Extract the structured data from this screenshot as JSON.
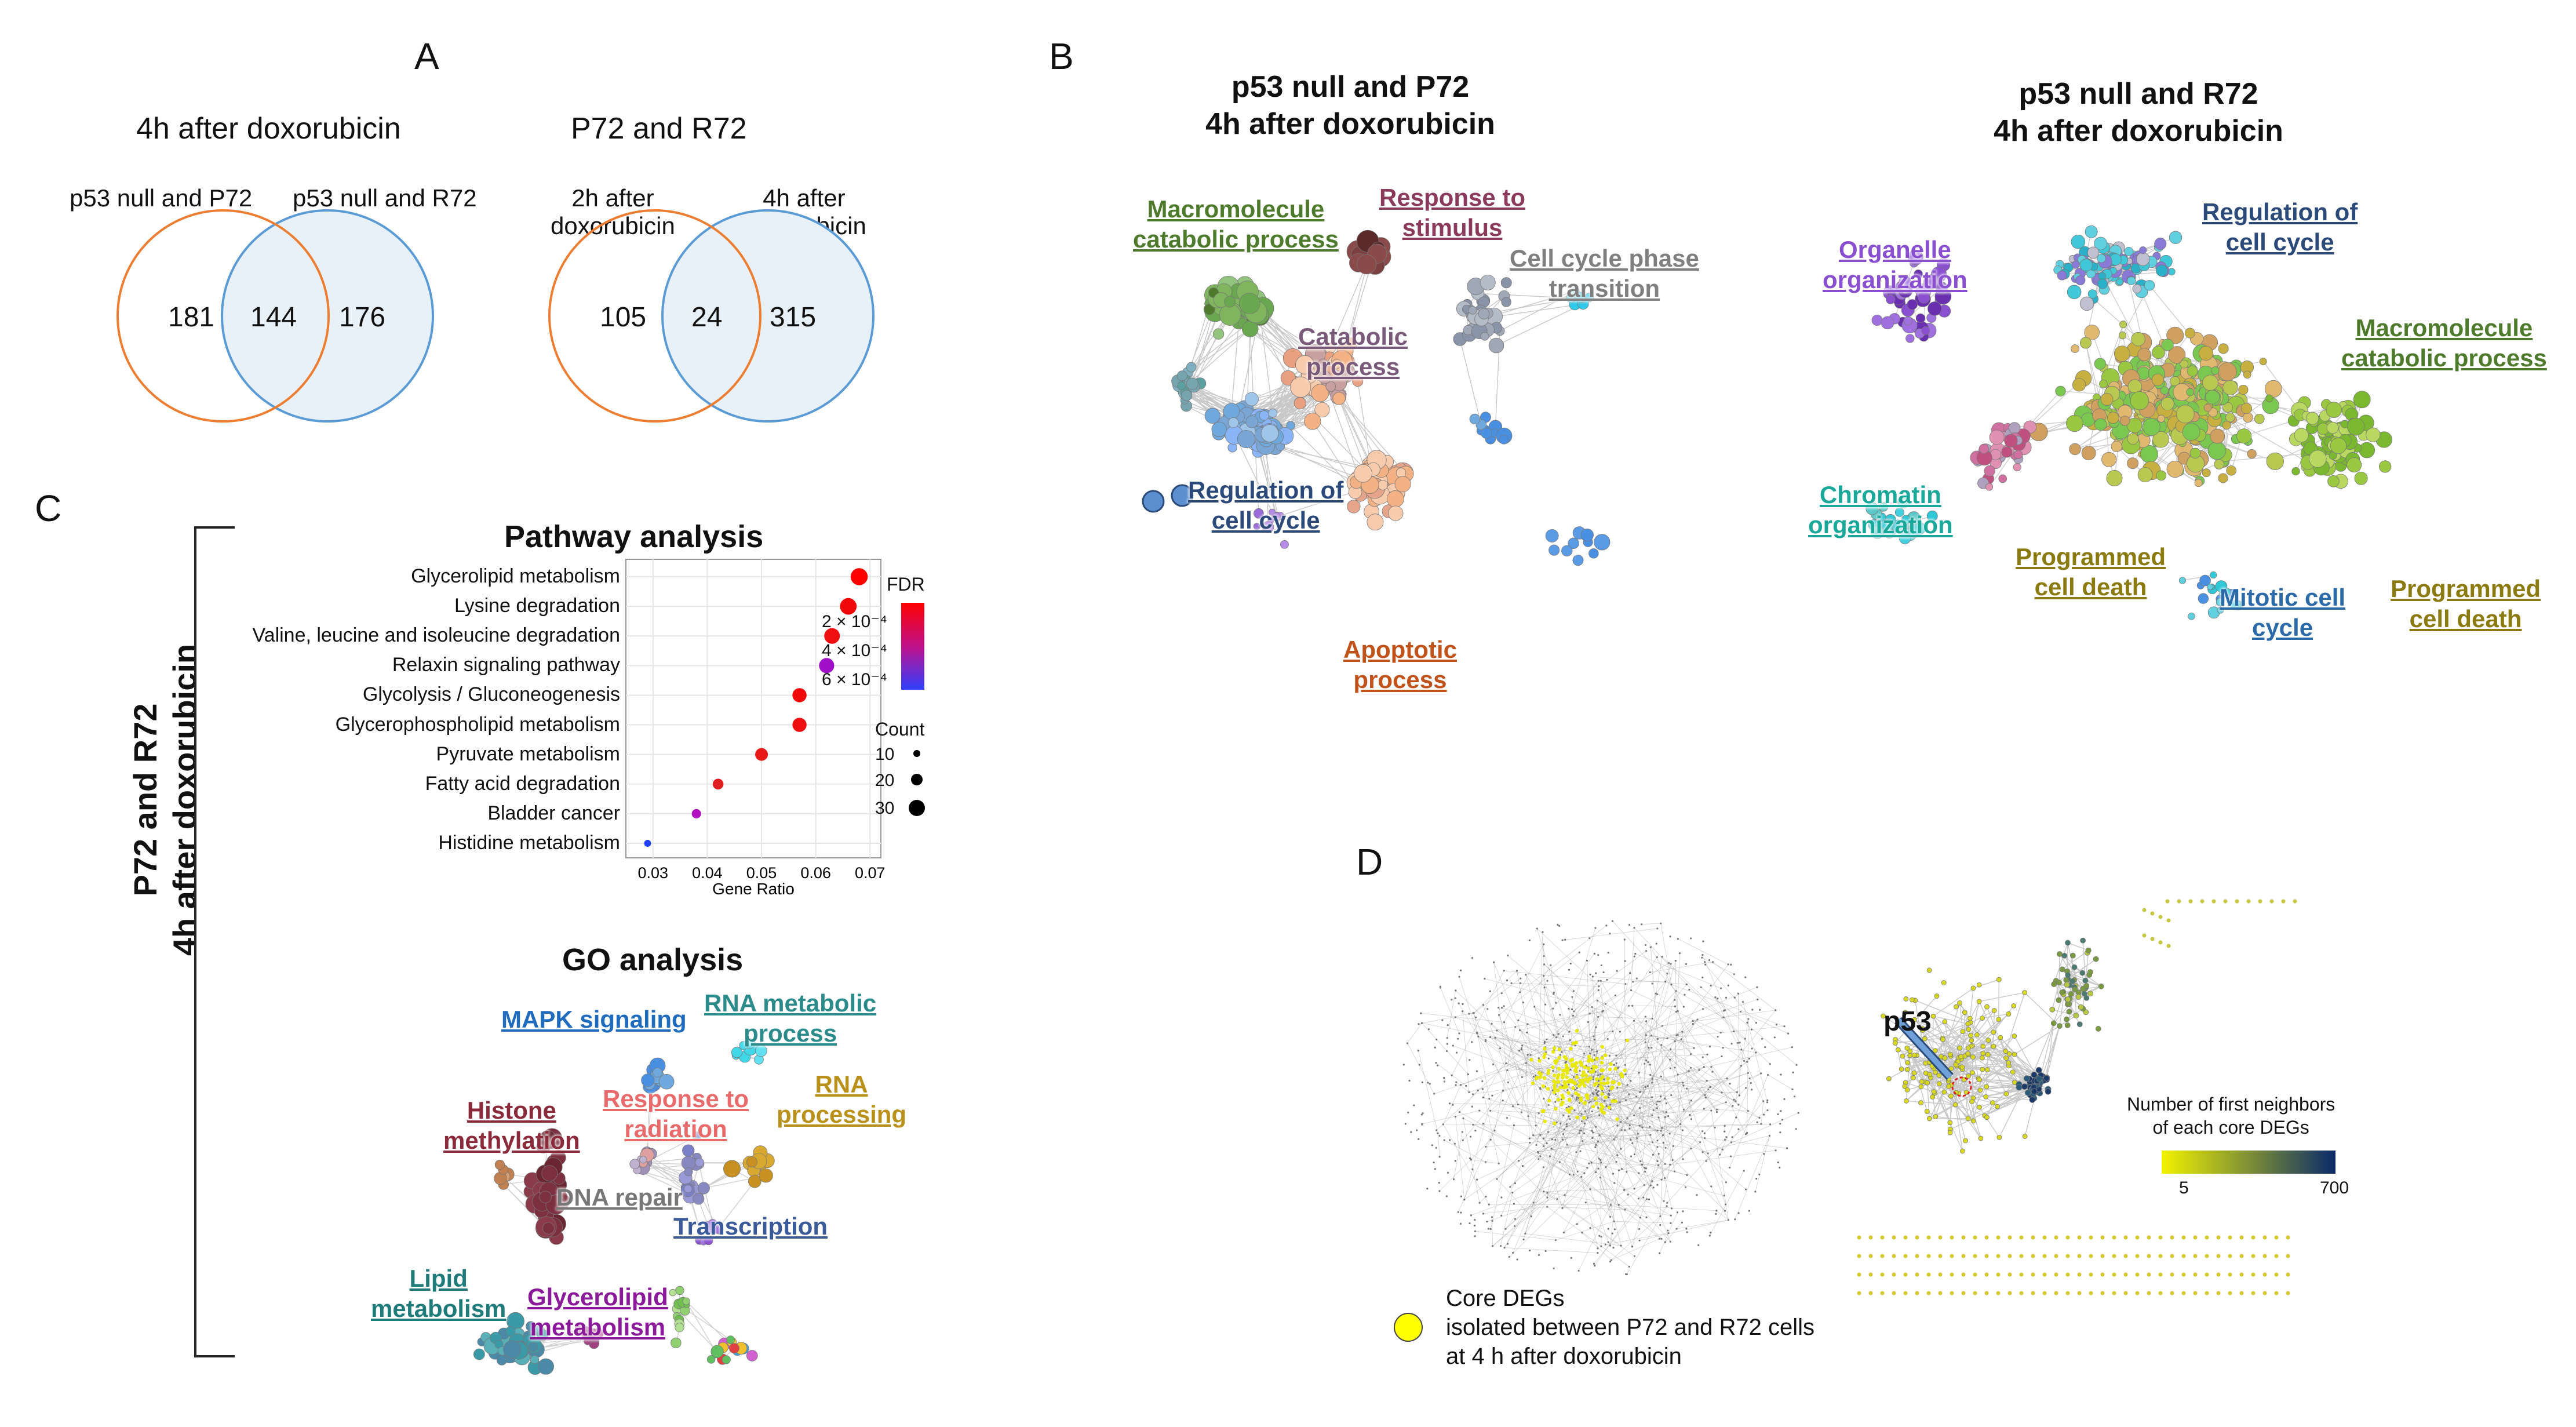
{
  "panels": {
    "A": "A",
    "B": "B",
    "C": "C",
    "D": "D"
  },
  "panelA": {
    "venn1": {
      "title": "4h after doxorubicin",
      "left_label": "p53 null and P72",
      "right_label": "p53 null and R72",
      "left_only": "181",
      "overlap": "144",
      "right_only": "176"
    },
    "venn2": {
      "title": "P72 and R72",
      "left_label_1": "2h after",
      "left_label_2": "doxorubicin",
      "right_label_1": "4h after",
      "right_label_2": "doxorubicin",
      "left_only": "105",
      "overlap": "24",
      "right_only": "315"
    },
    "colors": {
      "left": "#ed7d31",
      "right": "#5b9bd5",
      "right_fill": "#e8f0f8"
    }
  },
  "panelB": {
    "net1": {
      "title_1": "p53 null and P72",
      "title_2": "4h after doxorubicin",
      "labels": {
        "macromolecule_1": "Macromolecule",
        "macromolecule_2": "catabolic process",
        "response_1": "Response to",
        "response_2": "stimulus",
        "cellcycle_1": "Cell cycle phase",
        "cellcycle_2": "transition",
        "catabolic_1": "Catabolic",
        "catabolic_2": "process",
        "regulation_1": "Regulation of",
        "regulation_2": "cell cycle",
        "apoptotic_1": "Apoptotic",
        "apoptotic_2": "process"
      }
    },
    "net2": {
      "title_1": "p53 null and R72",
      "title_2": "4h after doxorubicin",
      "labels": {
        "regulation_1": "Regulation of",
        "regulation_2": "cell cycle",
        "organelle_1": "Organelle",
        "organelle_2": "organization",
        "macromolecule_1": "Macromolecule",
        "macromolecule_2": "catabolic process",
        "chromatin_1": "Chromatin",
        "chromatin_2": "organization",
        "programmed_a1": "Programmed",
        "programmed_a2": "cell death",
        "mitotic_1": "Mitotic cell",
        "mitotic_2": "cycle",
        "programmed_b1": "Programmed",
        "programmed_b2": "cell death"
      }
    }
  },
  "panelC": {
    "side_label_1": "P72 and R72",
    "side_label_2": "4h after doxorubicin",
    "pathway_title": "Pathway analysis",
    "go_title": "GO analysis",
    "chart_data": {
      "type": "scatter",
      "title": "Pathway analysis",
      "xlabel": "Gene Ratio",
      "ylabel": "",
      "xlim": [
        0.025,
        0.072
      ],
      "xticks": [
        "0.03",
        "0.04",
        "0.05",
        "0.06",
        "0.07"
      ],
      "xtick_values": [
        0.03,
        0.04,
        0.05,
        0.06,
        0.07
      ],
      "categories": [
        "Glycerolipid metabolism",
        "Lysine degradation",
        "Valine, leucine and isoleucine degradation",
        "Relaxin signaling pathway",
        "Glycolysis / Gluconeogenesis",
        "Glycerophospholipid metabolism",
        "Pyruvate metabolism",
        "Fatty acid degradation",
        "Bladder cancer",
        "Histidine metabolism"
      ],
      "gene_ratio": [
        0.068,
        0.066,
        0.063,
        0.062,
        0.057,
        0.057,
        0.05,
        0.042,
        0.038,
        0.029
      ],
      "count": [
        28,
        27,
        25,
        24,
        22,
        22,
        19,
        15,
        12,
        7
      ],
      "fdr_color": [
        "#ff0000",
        "#f00808",
        "#ee1010",
        "#a010c8",
        "#f00808",
        "#ee1010",
        "#e81818",
        "#e02020",
        "#b010c0",
        "#2040ff"
      ],
      "legend_fdr_title": "FDR",
      "legend_fdr_labels": [
        "2 × 10⁻⁴",
        "4 × 10⁻⁴",
        "6 × 10⁻⁴"
      ],
      "legend_count_title": "Count",
      "legend_count_labels": [
        "10",
        "20",
        "30"
      ],
      "legend_count_values": [
        10,
        20,
        30
      ]
    },
    "go_labels": {
      "mapk": "MAPK signaling",
      "rna_meta_1": "RNA metabolic",
      "rna_meta_2": "process",
      "histone_1": "Histone",
      "histone_2": "methylation",
      "response_1": "Response to",
      "response_2": "radiation",
      "rna_proc_1": "RNA",
      "rna_proc_2": "processing",
      "dna": "DNA repair",
      "transcription": "Transcription",
      "lipid_1": "Lipid",
      "lipid_2": "metabolism",
      "glycerolipid_1": "Glycerolipid",
      "glycerolipid_2": "metabolism"
    }
  },
  "panelD": {
    "p53": "p53",
    "legend_title_1": "Number of first neighbors",
    "legend_title_2": "of each core DEGs",
    "legend_min": "5",
    "legend_max": "700",
    "core_1": "Core DEGs",
    "core_2": "isolated between P72 and R72 cells",
    "core_3": "at 4 h after doxorubicin"
  }
}
